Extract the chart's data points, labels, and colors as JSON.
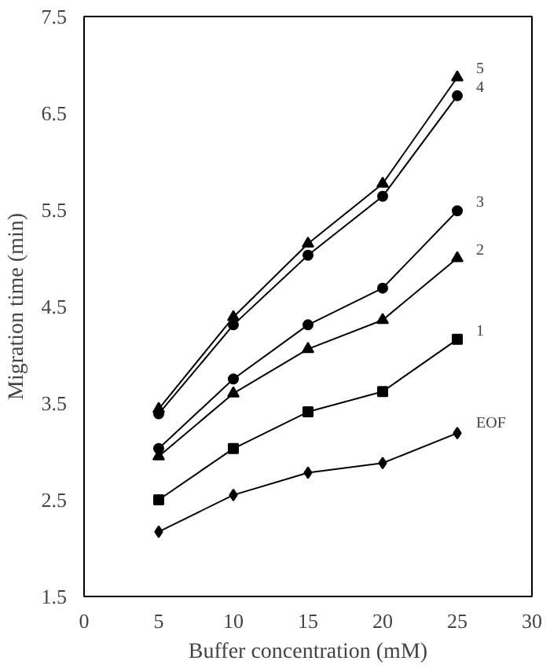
{
  "chart_data": {
    "type": "line",
    "xlabel": "Buffer concentration (mM)",
    "ylabel": "Migration time (min)",
    "x": [
      5,
      10,
      15,
      20,
      25
    ],
    "xlim": [
      0,
      30
    ],
    "xticks": [
      0,
      5,
      10,
      15,
      20,
      25,
      30
    ],
    "ylim": [
      1.5,
      7.5
    ],
    "yticks": [
      1.5,
      2.5,
      3.5,
      4.5,
      5.5,
      6.5,
      7.5
    ],
    "grid": false,
    "series": [
      {
        "name": "5",
        "color": "#000000",
        "marker": "triangle",
        "values": [
          3.44,
          4.39,
          5.15,
          5.77,
          6.87
        ]
      },
      {
        "name": "4",
        "color": "#000000",
        "marker": "circle",
        "values": [
          3.39,
          4.31,
          5.03,
          5.64,
          6.68
        ]
      },
      {
        "name": "3",
        "color": "#000000",
        "marker": "circle",
        "values": [
          3.03,
          3.75,
          4.31,
          4.69,
          5.49
        ]
      },
      {
        "name": "2",
        "color": "#000000",
        "marker": "triangle",
        "values": [
          2.95,
          3.6,
          4.06,
          4.36,
          5.0
        ]
      },
      {
        "name": "1",
        "color": "#000000",
        "marker": "square",
        "values": [
          2.5,
          3.03,
          3.41,
          3.62,
          4.16
        ]
      },
      {
        "name": "EOF",
        "color": "#000000",
        "marker": "diamond",
        "values": [
          2.17,
          2.55,
          2.78,
          2.88,
          3.19
        ]
      }
    ]
  }
}
